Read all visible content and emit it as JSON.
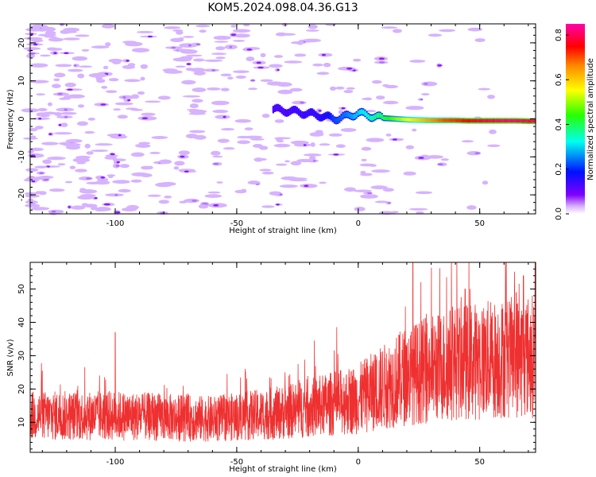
{
  "title": "KOM5.2024.098.04.36.G13",
  "chart_data": [
    {
      "type": "heatmap",
      "xlabel": "Height of straight line (km)",
      "ylabel": "Frequency (Hz)",
      "xlim": [
        -135,
        73
      ],
      "ylim": [
        -25,
        25
      ],
      "x_ticks": [
        -100,
        -50,
        0,
        50
      ],
      "y_ticks": [
        -20,
        -10,
        0,
        10,
        20
      ],
      "colorbar": {
        "label": "Normalized spectral amplitude",
        "range": [
          0.0,
          0.85
        ],
        "ticks": [
          "0.0",
          "0.2",
          "0.4",
          "0.6",
          "0.8"
        ],
        "colormap": "gist_rainbow (violet→blue→cyan→green→yellow→orange→red→magenta)"
      },
      "ridge": {
        "description": "dominant signal near 0 Hz strengthening with height",
        "x": [
          -35,
          -25,
          -15,
          -10,
          -5,
          0,
          5,
          10,
          15,
          20,
          25,
          30,
          35,
          40,
          45,
          50,
          55,
          60,
          65,
          70
        ],
        "freq": [
          2.5,
          1.8,
          0.8,
          0.0,
          0.6,
          1.5,
          0.8,
          0.2,
          0.0,
          -0.2,
          -0.3,
          -0.4,
          -0.4,
          -0.4,
          -0.5,
          -0.5,
          -0.5,
          -0.5,
          -0.5,
          -0.6
        ],
        "amplitude": [
          0.1,
          0.12,
          0.15,
          0.22,
          0.25,
          0.3,
          0.35,
          0.4,
          0.48,
          0.55,
          0.6,
          0.65,
          0.7,
          0.72,
          0.75,
          0.78,
          0.8,
          0.82,
          0.82,
          0.8
        ]
      },
      "background_noise_amplitude": [
        0.02,
        0.08
      ]
    },
    {
      "type": "line",
      "xlabel": "Height of straight line (km)",
      "ylabel": "SNR (v/v)",
      "xlim": [
        -135,
        73
      ],
      "ylim": [
        1,
        58
      ],
      "x_ticks": [
        -100,
        -50,
        0,
        50
      ],
      "y_ticks": [
        10,
        20,
        30,
        40,
        50
      ],
      "series": [
        {
          "color": "#ee3030",
          "trend_x": [
            -135,
            -100,
            -60,
            -30,
            0,
            20,
            40,
            73
          ],
          "trend_mean": [
            12,
            12,
            11,
            13,
            17,
            24,
            28,
            30
          ],
          "peaks": [
            {
              "x": 22.5,
              "y": 58
            },
            {
              "x": 68,
              "y": 54
            },
            {
              "x": 65,
              "y": 49
            },
            {
              "x": 44,
              "y": 50
            },
            {
              "x": -100,
              "y": 37
            }
          ]
        }
      ]
    }
  ]
}
